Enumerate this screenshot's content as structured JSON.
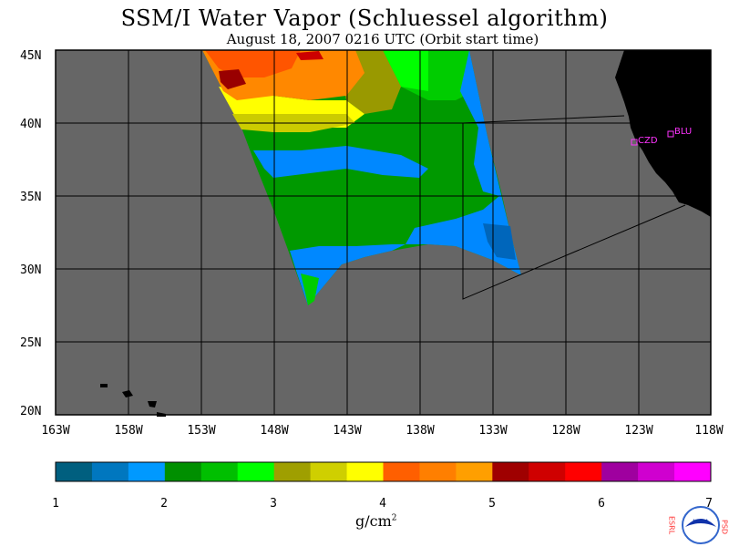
{
  "header": {
    "title": "SSM/I Water Vapor (Schluessel algorithm)",
    "subtitle": "August 18, 2007  0216 UTC  (Orbit start time)"
  },
  "map": {
    "lat_labels": [
      "45N",
      "40N",
      "35N",
      "30N",
      "25N",
      "20N"
    ],
    "lon_labels": [
      "163W",
      "158W",
      "153W",
      "148W",
      "143W",
      "138W",
      "133W",
      "128W",
      "123W",
      "118W"
    ],
    "sites": [
      {
        "id": "czd",
        "label": "CZD"
      },
      {
        "id": "blu",
        "label": "BLU"
      }
    ],
    "ocean_color": "#666666",
    "land_color": "#000000"
  },
  "legend": {
    "tick_labels": [
      "1",
      "2",
      "3",
      "4",
      "5",
      "6",
      "7"
    ],
    "unit_label": "g/cm",
    "unit_exp": "2",
    "colors": [
      "#005f7f",
      "#0077bf",
      "#0099ff",
      "#008f00",
      "#00bf00",
      "#00ff00",
      "#9f9f00",
      "#cfcf00",
      "#ffff00",
      "#ff5f00",
      "#ff7f00",
      "#ff9f00",
      "#9f0000",
      "#cf0000",
      "#ff0000",
      "#9f009f",
      "#cf00cf",
      "#ff00ff"
    ]
  },
  "logo": {
    "center_text": "NOAA",
    "left_letters": "ESRL",
    "right_letters": "PSD"
  }
}
